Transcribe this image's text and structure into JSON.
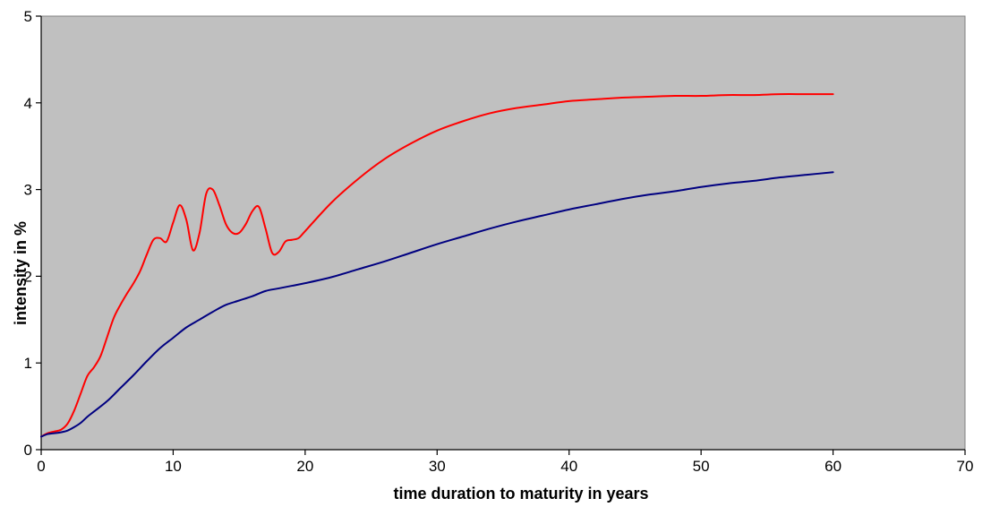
{
  "chart_data": {
    "type": "line",
    "title": "",
    "xlabel": "time duration to maturity in years",
    "ylabel": "intensity in %",
    "xlim": [
      0,
      70
    ],
    "ylim": [
      0,
      5
    ],
    "xticks": [
      0,
      10,
      20,
      30,
      40,
      50,
      60,
      70
    ],
    "yticks": [
      0,
      1,
      2,
      3,
      4,
      5
    ],
    "grid": false,
    "legend": "none",
    "plot_background": "#c0c0c0",
    "series": [
      {
        "color": "#ff0000",
        "points": [
          [
            0,
            0.15
          ],
          [
            0.5,
            0.19
          ],
          [
            1,
            0.21
          ],
          [
            1.5,
            0.23
          ],
          [
            2,
            0.3
          ],
          [
            2.5,
            0.45
          ],
          [
            3,
            0.65
          ],
          [
            3.5,
            0.85
          ],
          [
            4,
            0.95
          ],
          [
            4.5,
            1.08
          ],
          [
            5,
            1.3
          ],
          [
            5.5,
            1.52
          ],
          [
            6,
            1.67
          ],
          [
            6.5,
            1.8
          ],
          [
            7,
            1.92
          ],
          [
            7.5,
            2.06
          ],
          [
            8,
            2.25
          ],
          [
            8.5,
            2.42
          ],
          [
            9,
            2.44
          ],
          [
            9.5,
            2.4
          ],
          [
            10,
            2.62
          ],
          [
            10.5,
            2.82
          ],
          [
            11,
            2.65
          ],
          [
            11.5,
            2.3
          ],
          [
            12,
            2.5
          ],
          [
            12.5,
            2.95
          ],
          [
            13,
            3.0
          ],
          [
            13.5,
            2.82
          ],
          [
            14,
            2.6
          ],
          [
            14.5,
            2.5
          ],
          [
            15,
            2.5
          ],
          [
            15.5,
            2.6
          ],
          [
            16,
            2.75
          ],
          [
            16.5,
            2.8
          ],
          [
            17,
            2.55
          ],
          [
            17.5,
            2.27
          ],
          [
            18,
            2.28
          ],
          [
            18.5,
            2.4
          ],
          [
            19,
            2.42
          ],
          [
            19.5,
            2.44
          ],
          [
            20,
            2.52
          ],
          [
            22,
            2.85
          ],
          [
            24,
            3.12
          ],
          [
            26,
            3.35
          ],
          [
            28,
            3.53
          ],
          [
            30,
            3.68
          ],
          [
            32,
            3.79
          ],
          [
            34,
            3.88
          ],
          [
            36,
            3.94
          ],
          [
            38,
            3.98
          ],
          [
            40,
            4.02
          ],
          [
            42,
            4.04
          ],
          [
            44,
            4.06
          ],
          [
            46,
            4.07
          ],
          [
            48,
            4.08
          ],
          [
            50,
            4.08
          ],
          [
            52,
            4.09
          ],
          [
            54,
            4.09
          ],
          [
            56,
            4.1
          ],
          [
            58,
            4.1
          ],
          [
            60,
            4.1
          ]
        ]
      },
      {
        "color": "#000080",
        "points": [
          [
            0,
            0.15
          ],
          [
            0.5,
            0.18
          ],
          [
            1,
            0.19
          ],
          [
            1.5,
            0.2
          ],
          [
            2,
            0.22
          ],
          [
            2.5,
            0.26
          ],
          [
            3,
            0.31
          ],
          [
            3.5,
            0.38
          ],
          [
            4,
            0.44
          ],
          [
            5,
            0.56
          ],
          [
            6,
            0.71
          ],
          [
            7,
            0.86
          ],
          [
            8,
            1.02
          ],
          [
            9,
            1.17
          ],
          [
            10,
            1.29
          ],
          [
            11,
            1.41
          ],
          [
            12,
            1.5
          ],
          [
            13,
            1.59
          ],
          [
            14,
            1.67
          ],
          [
            15,
            1.72
          ],
          [
            16,
            1.77
          ],
          [
            17,
            1.83
          ],
          [
            18,
            1.86
          ],
          [
            19,
            1.89
          ],
          [
            20,
            1.92
          ],
          [
            22,
            1.99
          ],
          [
            24,
            2.08
          ],
          [
            26,
            2.17
          ],
          [
            28,
            2.27
          ],
          [
            30,
            2.37
          ],
          [
            32,
            2.46
          ],
          [
            34,
            2.55
          ],
          [
            36,
            2.63
          ],
          [
            38,
            2.7
          ],
          [
            40,
            2.77
          ],
          [
            42,
            2.83
          ],
          [
            44,
            2.89
          ],
          [
            46,
            2.94
          ],
          [
            48,
            2.98
          ],
          [
            50,
            3.03
          ],
          [
            52,
            3.07
          ],
          [
            54,
            3.1
          ],
          [
            56,
            3.14
          ],
          [
            58,
            3.17
          ],
          [
            60,
            3.2
          ]
        ]
      }
    ]
  }
}
